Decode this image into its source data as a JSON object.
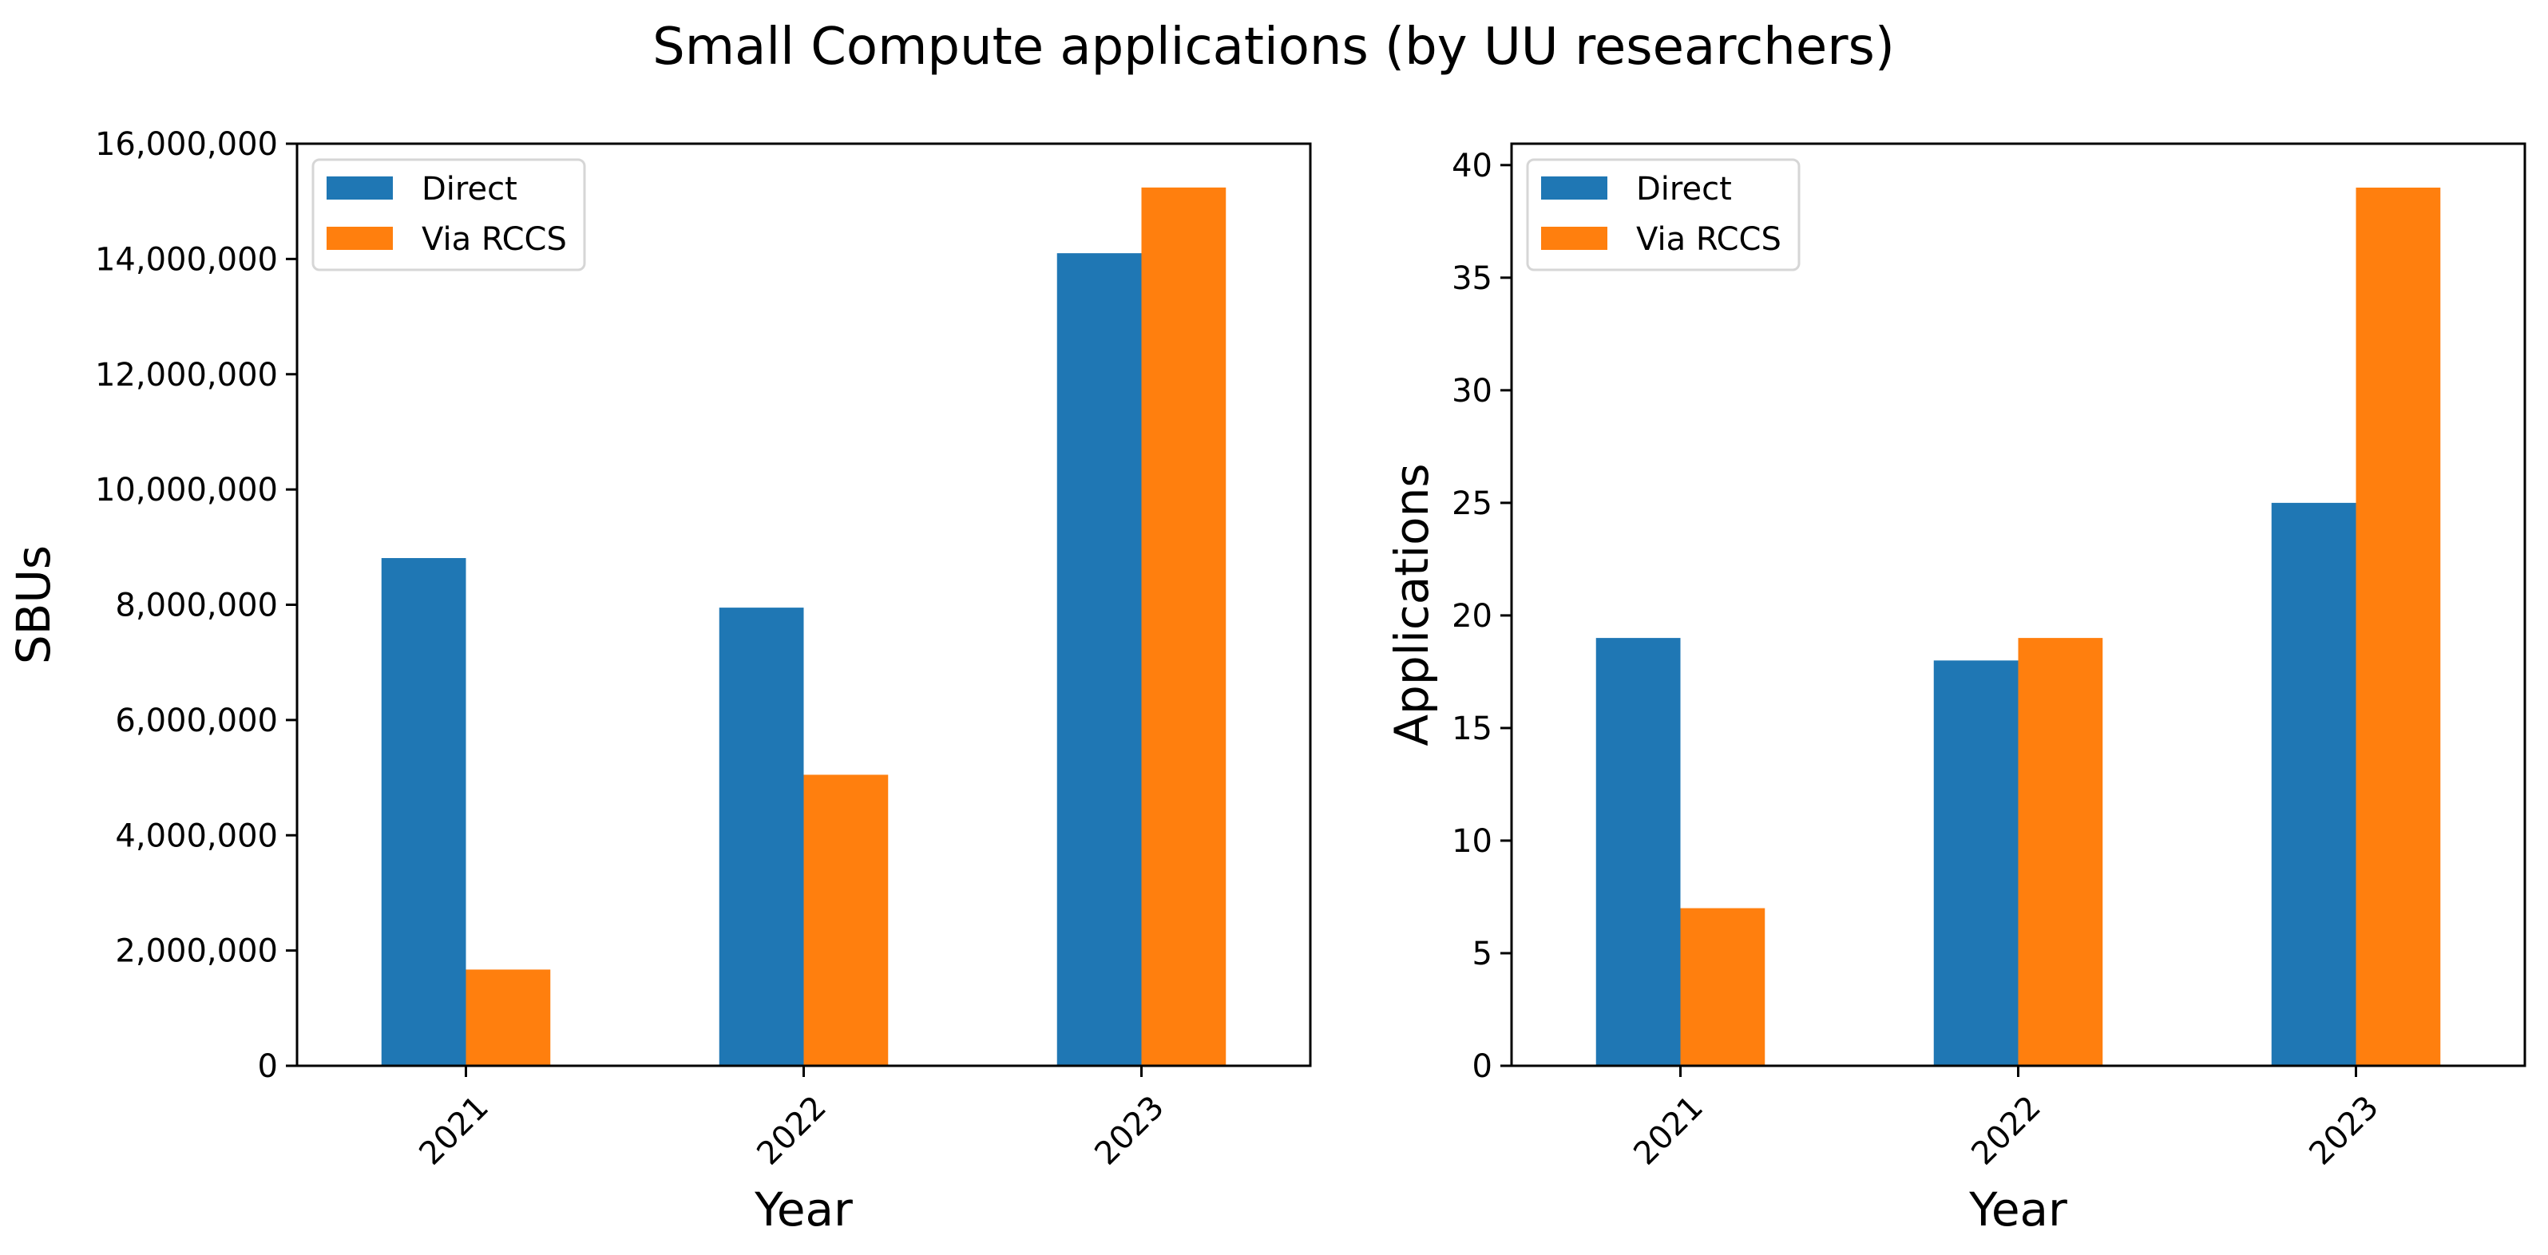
{
  "figure": {
    "title": "Small Compute applications (by UU researchers)"
  },
  "colors": {
    "direct": "#1f77b4",
    "via_rccs": "#ff7f0e",
    "legend_border": "#d6d6d6",
    "axis": "#000000"
  },
  "chart_data": [
    {
      "type": "bar",
      "title": "",
      "xlabel": "Year",
      "ylabel": "SBUs",
      "categories": [
        "2021",
        "2022",
        "2023"
      ],
      "x_tick_rotation_deg": 45,
      "series": [
        {
          "name": "Direct",
          "color": "#1f77b4",
          "values": [
            8810000,
            7950000,
            14100000
          ]
        },
        {
          "name": "Via RCCS",
          "color": "#ff7f0e",
          "values": [
            1670000,
            5050000,
            15240000
          ]
        }
      ],
      "ylim": [
        0,
        16000000
      ],
      "yticks": [
        0,
        2000000,
        4000000,
        6000000,
        8000000,
        10000000,
        12000000,
        14000000,
        16000000
      ],
      "ytick_labels": [
        "0",
        "2,000,000",
        "4,000,000",
        "6,000,000",
        "8,000,000",
        "10,000,000",
        "12,000,000",
        "14,000,000",
        "16,000,000"
      ],
      "grid": false,
      "legend": {
        "position": "top-left",
        "entries": [
          "Direct",
          "Via RCCS"
        ]
      }
    },
    {
      "type": "bar",
      "title": "",
      "xlabel": "Year",
      "ylabel": "Applications",
      "categories": [
        "2021",
        "2022",
        "2023"
      ],
      "x_tick_rotation_deg": 45,
      "series": [
        {
          "name": "Direct",
          "color": "#1f77b4",
          "values": [
            19,
            18,
            25
          ]
        },
        {
          "name": "Via RCCS",
          "color": "#ff7f0e",
          "values": [
            7,
            19,
            39
          ]
        }
      ],
      "ylim": [
        0,
        40.95
      ],
      "yticks": [
        0,
        5,
        10,
        15,
        20,
        25,
        30,
        35,
        40
      ],
      "ytick_labels": [
        "0",
        "5",
        "10",
        "15",
        "20",
        "25",
        "30",
        "35",
        "40"
      ],
      "grid": false,
      "legend": {
        "position": "top-left",
        "entries": [
          "Direct",
          "Via RCCS"
        ]
      }
    }
  ]
}
